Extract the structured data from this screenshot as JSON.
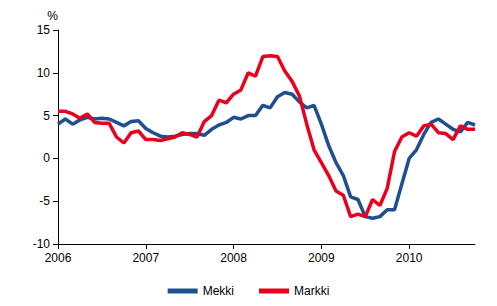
{
  "chart_data": {
    "type": "line",
    "y_label": "%",
    "categories": [
      "2006",
      null,
      null,
      null,
      null,
      null,
      null,
      null,
      null,
      null,
      null,
      null,
      "2007",
      null,
      null,
      null,
      null,
      null,
      null,
      null,
      null,
      null,
      null,
      null,
      "2008",
      null,
      null,
      null,
      null,
      null,
      null,
      null,
      null,
      null,
      null,
      null,
      "2009",
      null,
      null,
      null,
      null,
      null,
      null,
      null,
      null,
      null,
      null,
      null,
      "2010",
      null,
      null,
      null,
      null,
      null,
      null,
      null,
      null,
      null
    ],
    "series": [
      {
        "name": "Mekki",
        "color": "#1f4f8f",
        "values": [
          4.0,
          4.6,
          4.0,
          4.5,
          4.8,
          4.6,
          4.7,
          4.6,
          4.2,
          3.8,
          4.3,
          4.4,
          3.5,
          3.0,
          2.6,
          2.5,
          2.6,
          2.8,
          2.9,
          2.9,
          2.7,
          3.4,
          3.9,
          4.2,
          4.8,
          4.6,
          5.0,
          5.0,
          6.2,
          5.9,
          7.2,
          7.7,
          7.5,
          6.6,
          5.9,
          6.2,
          4.0,
          1.5,
          -0.5,
          -2.0,
          -4.5,
          -4.8,
          -6.8,
          -7.0,
          -6.8,
          -6.0,
          -6.0,
          -3.0,
          0.0,
          1.0,
          2.8,
          4.2,
          4.6,
          4.0,
          3.4,
          3.1,
          4.2,
          3.9
        ]
      },
      {
        "name": "Markki",
        "color": "#e8001c",
        "values": [
          5.5,
          5.5,
          5.2,
          4.7,
          5.2,
          4.2,
          4.1,
          4.1,
          2.5,
          1.8,
          3.0,
          3.2,
          2.2,
          2.2,
          2.1,
          2.3,
          2.5,
          3.0,
          2.8,
          2.5,
          4.3,
          5.0,
          6.8,
          6.5,
          7.5,
          8.0,
          10.0,
          9.6,
          11.9,
          12.0,
          11.9,
          10.2,
          9.0,
          7.3,
          4.0,
          1.0,
          -0.5,
          -2.0,
          -3.8,
          -4.3,
          -6.8,
          -6.5,
          -6.8,
          -4.8,
          -5.5,
          -3.5,
          0.8,
          2.5,
          3.0,
          2.6,
          3.8,
          4.0,
          3.0,
          2.9,
          2.2,
          3.8,
          3.4,
          3.4
        ]
      }
    ],
    "ylim": [
      -10,
      15
    ],
    "yticks": [
      -10,
      -5,
      0,
      5,
      10,
      15
    ],
    "grid": false,
    "legend": "bottom"
  }
}
